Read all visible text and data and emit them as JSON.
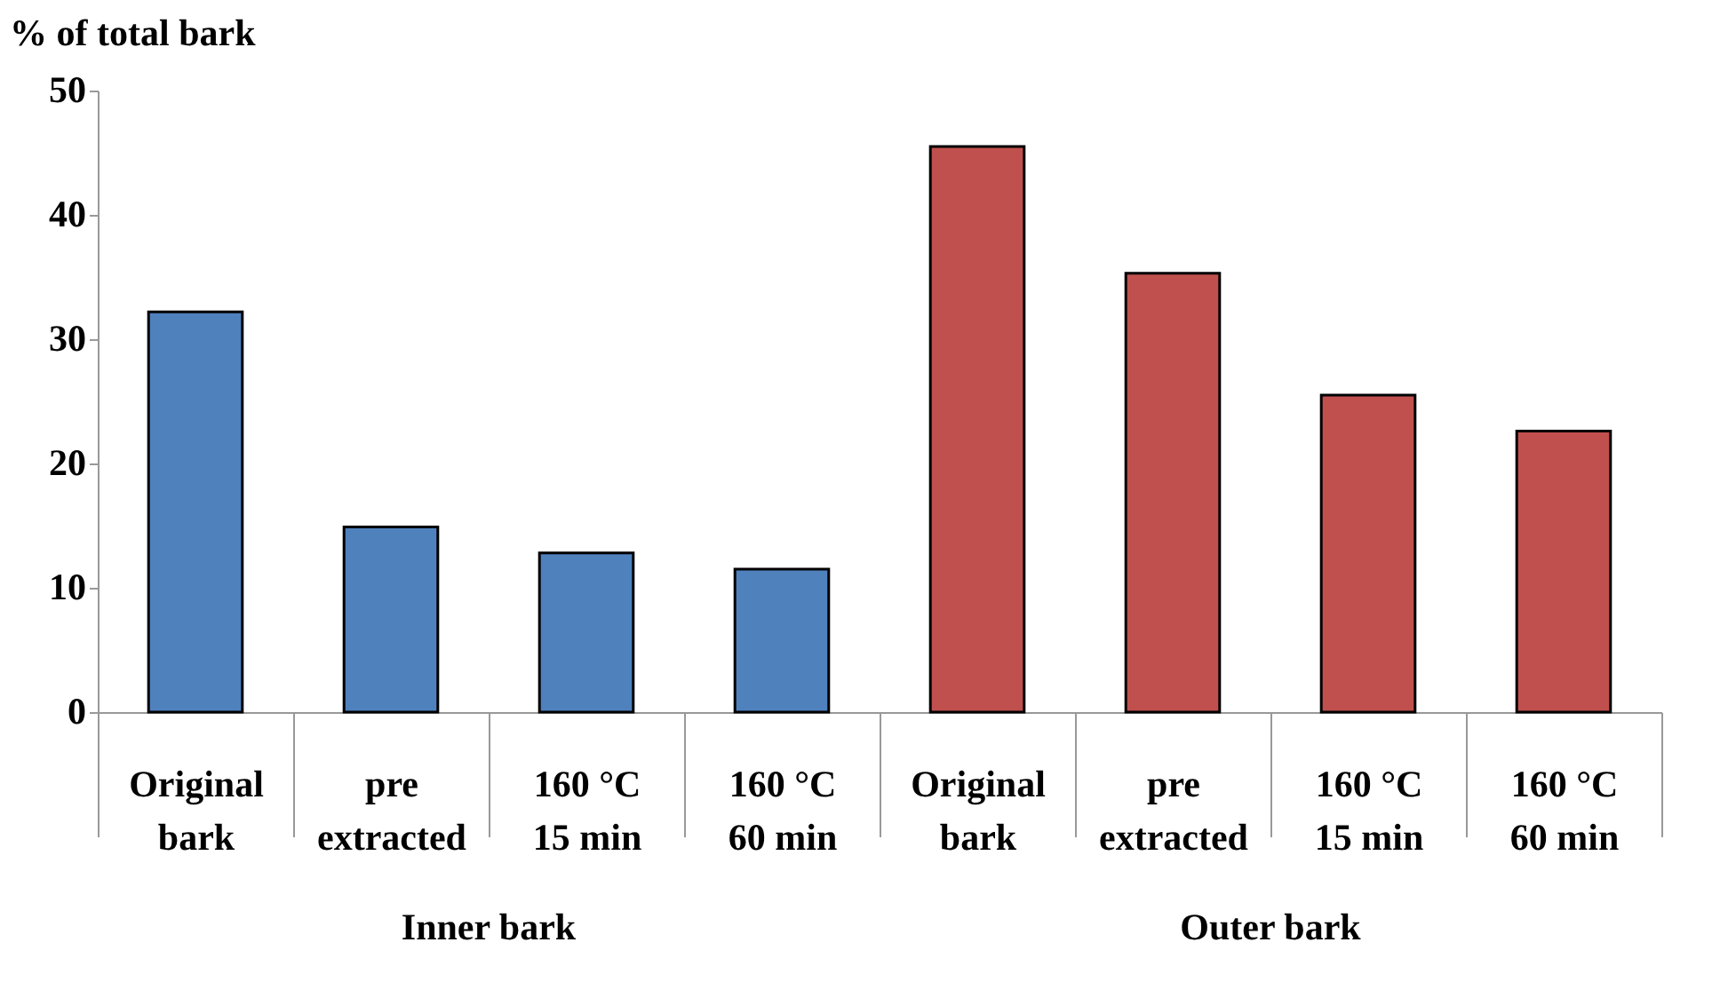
{
  "chart_data": {
    "type": "bar",
    "ylabel": "% of total bark",
    "categories": [
      "Original\nbark",
      "pre\nextracted",
      "160 °C\n15 min",
      "160 °C\n60 min",
      "Original\nbark",
      "pre\nextracted",
      "160 °C\n15 min",
      "160 °C\n60 min"
    ],
    "series": [
      {
        "color": "#4f81bd",
        "values": [
          32.2,
          14.9,
          12.8,
          11.5,
          null,
          null,
          null,
          null
        ]
      },
      {
        "color": "#c0504d",
        "values": [
          null,
          null,
          null,
          null,
          45.5,
          35.3,
          25.5,
          22.6
        ]
      }
    ],
    "annotations": [
      "Inner bark",
      "Outer bark"
    ],
    "ylim": [
      0,
      50
    ],
    "yticks": [
      0,
      10,
      20,
      30,
      40,
      50
    ],
    "grid": false,
    "legend": false
  }
}
